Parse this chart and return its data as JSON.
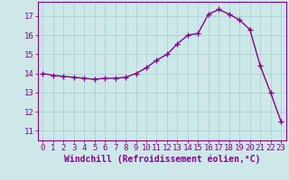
{
  "x": [
    0,
    1,
    2,
    3,
    4,
    5,
    6,
    7,
    8,
    9,
    10,
    11,
    12,
    13,
    14,
    15,
    16,
    17,
    18,
    19,
    20,
    21,
    22,
    23
  ],
  "y": [
    14.0,
    13.9,
    13.85,
    13.8,
    13.75,
    13.7,
    13.75,
    13.75,
    13.8,
    14.0,
    14.3,
    14.7,
    15.0,
    15.55,
    16.0,
    16.1,
    17.1,
    17.35,
    17.1,
    16.8,
    16.3,
    14.4,
    13.0,
    11.5
  ],
  "line_color": "#880088",
  "marker": "+",
  "bg_color": "#cce8e8",
  "grid_color": "#aacccc",
  "xlabel": "Windchill (Refroidissement éolien,°C)",
  "ylim": [
    10.5,
    17.75
  ],
  "yticks": [
    11,
    12,
    13,
    14,
    15,
    16,
    17
  ],
  "xticks": [
    0,
    1,
    2,
    3,
    4,
    5,
    6,
    7,
    8,
    9,
    10,
    11,
    12,
    13,
    14,
    15,
    16,
    17,
    18,
    19,
    20,
    21,
    22,
    23
  ],
  "tick_fontsize": 6.5,
  "xlabel_fontsize": 7,
  "line_width": 1.0,
  "marker_size": 4
}
